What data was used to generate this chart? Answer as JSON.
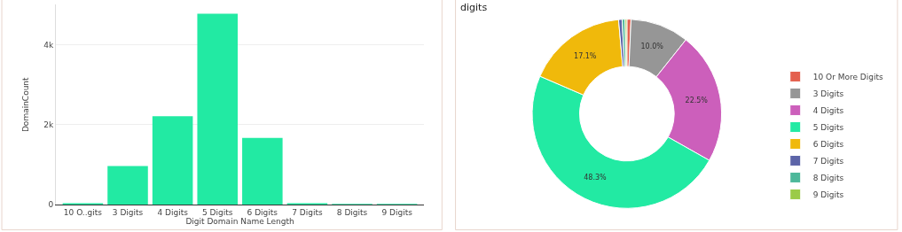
{
  "chart_data": [
    {
      "type": "bar",
      "xlabel": "Digit Domain Name Length",
      "ylabel": "DomainCount",
      "categories": [
        "10 O..gits",
        "3 Digits",
        "4 Digits",
        "5 Digits",
        "6 Digits",
        "7 Digits",
        "8 Digits",
        "9 Digits"
      ],
      "values": [
        40,
        970,
        2210,
        4770,
        1670,
        40,
        20,
        10
      ],
      "color": "#22eaa3",
      "ylim": [
        0,
        5000
      ],
      "yticks": [
        0,
        {
          "value": 2000,
          "label": "2k"
        },
        {
          "value": 4000,
          "label": "4k"
        }
      ],
      "grid": "y",
      "legend": false
    },
    {
      "type": "donut",
      "title": "digits",
      "categories": [
        "10 Or More Digits",
        "3 Digits",
        "4 Digits",
        "5 Digits",
        "6 Digits",
        "7 Digits",
        "8 Digits",
        "9 Digits"
      ],
      "values": [
        0.7,
        10.0,
        22.5,
        48.3,
        17.1,
        0.6,
        0.5,
        0.3
      ],
      "value_labels": [
        null,
        "10.0%",
        "22.5%",
        "48.3%",
        "17.1%",
        null,
        null,
        null
      ],
      "colors": [
        "#e4604e",
        "#969696",
        "#cc5fbb",
        "#22eaa3",
        "#f0b90b",
        "#5c64a8",
        "#4db89a",
        "#9bcb48"
      ],
      "legend": "right"
    }
  ]
}
